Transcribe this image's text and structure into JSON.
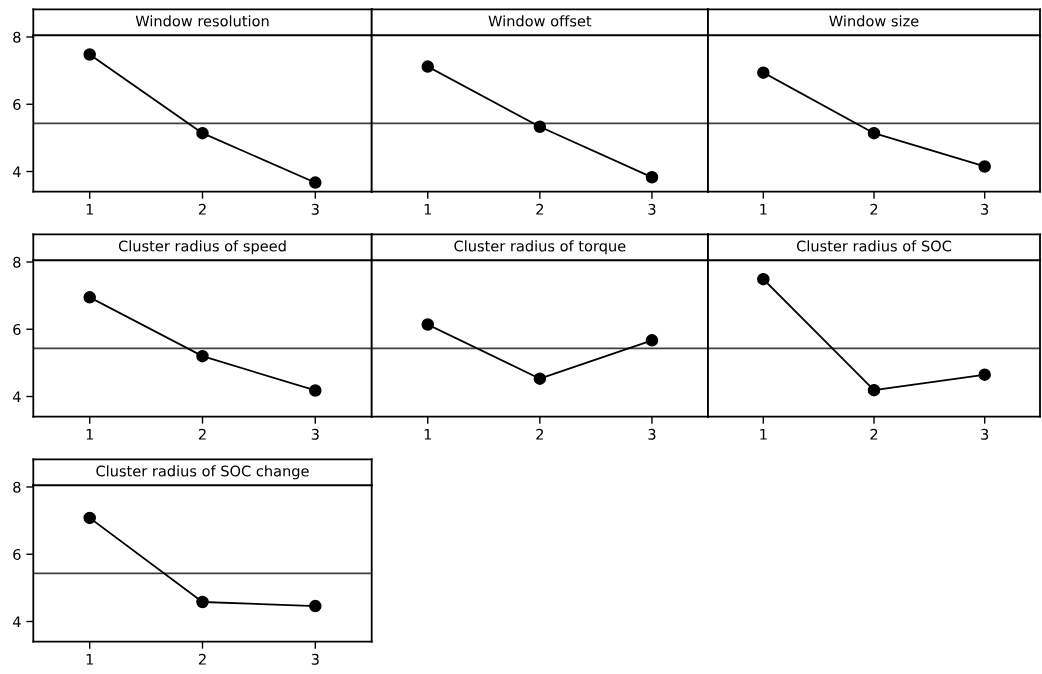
{
  "chart_data": [
    {
      "type": "line",
      "title": "Window resolution",
      "categories": [
        "1",
        "2",
        "3"
      ],
      "series": [
        {
          "color": "#000000",
          "values": [
            7.48,
            5.14,
            3.67
          ]
        }
      ],
      "ylim": [
        3.4,
        8.05
      ],
      "yticks": [
        4,
        6,
        8
      ],
      "marker": "circle",
      "line_style": "solid",
      "ref_lines": [
        {
          "axis": "y",
          "value": 5.43,
          "color": "#404040"
        }
      ]
    },
    {
      "type": "line",
      "title": "Window offset",
      "categories": [
        "1",
        "2",
        "3"
      ],
      "series": [
        {
          "color": "#000000",
          "values": [
            7.12,
            5.33,
            3.83
          ]
        }
      ],
      "ylim": [
        3.4,
        8.05
      ],
      "tick_labels": "x",
      "marker": "circle",
      "line_style": "solid",
      "ref_lines": [
        {
          "axis": "y",
          "value": 5.43,
          "color": "#404040"
        }
      ]
    },
    {
      "type": "line",
      "title": "Window size",
      "categories": [
        "1",
        "2",
        "3"
      ],
      "series": [
        {
          "color": "#000000",
          "values": [
            6.94,
            5.14,
            4.15
          ]
        }
      ],
      "ylim": [
        3.4,
        8.05
      ],
      "tick_labels": "x",
      "marker": "circle",
      "line_style": "solid",
      "ref_lines": [
        {
          "axis": "y",
          "value": 5.43,
          "color": "#404040"
        }
      ]
    },
    {
      "type": "line",
      "title": "Cluster radius of speed",
      "categories": [
        "1",
        "2",
        "3"
      ],
      "series": [
        {
          "color": "#000000",
          "values": [
            6.95,
            5.2,
            4.18
          ]
        }
      ],
      "ylim": [
        3.4,
        8.05
      ],
      "yticks": [
        4,
        6,
        8
      ],
      "marker": "circle",
      "line_style": "solid",
      "ref_lines": [
        {
          "axis": "y",
          "value": 5.43,
          "color": "#404040"
        }
      ]
    },
    {
      "type": "line",
      "title": "Cluster radius of torque",
      "categories": [
        "1",
        "2",
        "3"
      ],
      "series": [
        {
          "color": "#000000",
          "values": [
            6.14,
            4.53,
            5.67
          ]
        }
      ],
      "ylim": [
        3.4,
        8.05
      ],
      "tick_labels": "x",
      "marker": "circle",
      "line_style": "solid",
      "ref_lines": [
        {
          "axis": "y",
          "value": 5.43,
          "color": "#404040"
        }
      ]
    },
    {
      "type": "line",
      "title": "Cluster radius of SOC",
      "categories": [
        "1",
        "2",
        "3"
      ],
      "series": [
        {
          "color": "#000000",
          "values": [
            7.49,
            4.19,
            4.65
          ]
        }
      ],
      "ylim": [
        3.4,
        8.05
      ],
      "tick_labels": "x",
      "marker": "circle",
      "line_style": "solid",
      "ref_lines": [
        {
          "axis": "y",
          "value": 5.43,
          "color": "#404040"
        }
      ]
    },
    {
      "type": "line",
      "title": "Cluster radius of SOC change",
      "categories": [
        "1",
        "2",
        "3"
      ],
      "series": [
        {
          "color": "#000000",
          "values": [
            7.08,
            4.58,
            4.46
          ]
        }
      ],
      "ylim": [
        3.4,
        8.05
      ],
      "yticks": [
        4,
        6,
        8
      ],
      "marker": "circle",
      "line_style": "solid",
      "ref_lines": [
        {
          "axis": "y",
          "value": 5.43,
          "color": "#404040"
        }
      ]
    }
  ]
}
